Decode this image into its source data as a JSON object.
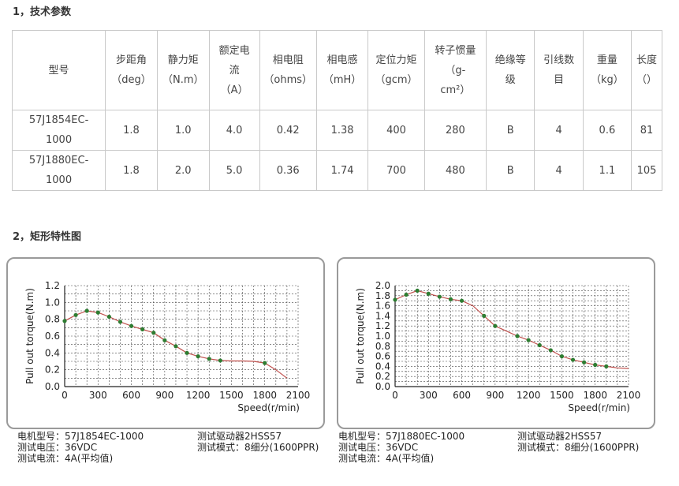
{
  "section1_title": "1，技术参数",
  "section2_title": "2，矩形特性图",
  "table": {
    "headers": [
      "型号",
      "步距角\n（deg）",
      "静力矩\n（N.m）",
      "额定电\n流\n（A）",
      "相电阻\n（ohms）",
      "相电感\n（mH）",
      "定位力矩\n（gcm）",
      "转子惯量\n（g-\ncm²）",
      "绝缘等\n级",
      "引线数\n目",
      "重量\n（kg）",
      "长度\n（）"
    ],
    "rows": [
      [
        "57J1854EC-\n1000",
        "1.8",
        "1.0",
        "4.0",
        "0.42",
        "1.38",
        "400",
        "280",
        "B",
        "4",
        "0.6",
        "81"
      ],
      [
        "57J1880EC-\n1000",
        "1.8",
        "2.0",
        "5.0",
        "0.36",
        "1.74",
        "700",
        "480",
        "B",
        "4",
        "1.1",
        "105"
      ]
    ]
  },
  "chart_data": [
    {
      "type": "line",
      "ylabel": "Pull out torque(N.m)",
      "xlabel": "Speed(r/min)",
      "xlim": [
        0,
        2100
      ],
      "ylim": [
        0,
        1.2
      ],
      "xticks": [
        "0",
        "300",
        "600",
        "900",
        "1200",
        "1500",
        "1800",
        "2100"
      ],
      "yticks": [
        "0.0",
        "0.2",
        "0.4",
        "0.6",
        "0.8",
        "1.0",
        "1.2"
      ],
      "grid": true,
      "x": [
        0,
        100,
        200,
        300,
        400,
        500,
        600,
        700,
        800,
        900,
        1000,
        1100,
        1200,
        1300,
        1400,
        1500,
        1600,
        1700,
        1800,
        1900,
        2000
      ],
      "y": [
        0.78,
        0.85,
        0.9,
        0.88,
        0.83,
        0.77,
        0.72,
        0.68,
        0.64,
        0.55,
        0.48,
        0.4,
        0.36,
        0.33,
        0.31,
        0.305,
        0.305,
        0.3,
        0.28,
        0.2,
        0.1
      ],
      "marked_points": [
        [
          0,
          0.78
        ],
        [
          100,
          0.85
        ],
        [
          200,
          0.9
        ],
        [
          300,
          0.88
        ],
        [
          400,
          0.83
        ],
        [
          500,
          0.77
        ],
        [
          600,
          0.72
        ],
        [
          700,
          0.68
        ],
        [
          800,
          0.64
        ],
        [
          900,
          0.55
        ],
        [
          1000,
          0.48
        ],
        [
          1100,
          0.4
        ],
        [
          1200,
          0.36
        ],
        [
          1300,
          0.33
        ],
        [
          1400,
          0.31
        ],
        [
          1800,
          0.28
        ]
      ],
      "line_color": "#c0504d",
      "marker_color": "#2e7d32",
      "caption": {
        "left": [
          "电机型号：57J1854EC-1000",
          "测试电压：36VDC",
          "测试电流：4A(平均值)"
        ],
        "right": [
          "测试驱动器2HSS57",
          "测试模式：8细分(1600PPR)"
        ]
      }
    },
    {
      "type": "line",
      "ylabel": "Pull out torque(N.m)",
      "xlabel": "Speed(r/min)",
      "xlim": [
        0,
        2100
      ],
      "ylim": [
        0,
        2.0
      ],
      "xticks": [
        "0",
        "300",
        "600",
        "900",
        "1200",
        "1500",
        "1800",
        "2100"
      ],
      "yticks": [
        "0.0",
        "0.2",
        "0.4",
        "0.6",
        "0.8",
        "1.0",
        "1.2",
        "1.4",
        "1.6",
        "1.8",
        "2.0"
      ],
      "grid": true,
      "x": [
        0,
        100,
        200,
        300,
        400,
        500,
        600,
        700,
        800,
        900,
        1000,
        1100,
        1200,
        1300,
        1400,
        1500,
        1600,
        1700,
        1800,
        1900,
        2000,
        2100
      ],
      "y": [
        1.72,
        1.82,
        1.9,
        1.84,
        1.78,
        1.73,
        1.7,
        1.6,
        1.4,
        1.2,
        1.1,
        1.0,
        0.92,
        0.82,
        0.72,
        0.6,
        0.53,
        0.48,
        0.43,
        0.4,
        0.37,
        0.36
      ],
      "marked_points": [
        [
          0,
          1.72
        ],
        [
          100,
          1.82
        ],
        [
          200,
          1.9
        ],
        [
          300,
          1.84
        ],
        [
          400,
          1.78
        ],
        [
          500,
          1.73
        ],
        [
          600,
          1.7
        ],
        [
          800,
          1.4
        ],
        [
          900,
          1.2
        ],
        [
          1100,
          1.0
        ],
        [
          1200,
          0.92
        ],
        [
          1300,
          0.82
        ],
        [
          1400,
          0.72
        ],
        [
          1500,
          0.6
        ],
        [
          1600,
          0.53
        ],
        [
          1700,
          0.48
        ],
        [
          1800,
          0.43
        ],
        [
          1900,
          0.4
        ]
      ],
      "line_color": "#c0504d",
      "marker_color": "#2e7d32",
      "caption": {
        "left": [
          "电机型号：57J1880EC-1000",
          "测试电压：36VDC",
          "测试电流：4A(平均值)"
        ],
        "right": [
          "测试驱动器2HSS57",
          "测试模式：8细分(1600PPR)"
        ]
      }
    }
  ]
}
